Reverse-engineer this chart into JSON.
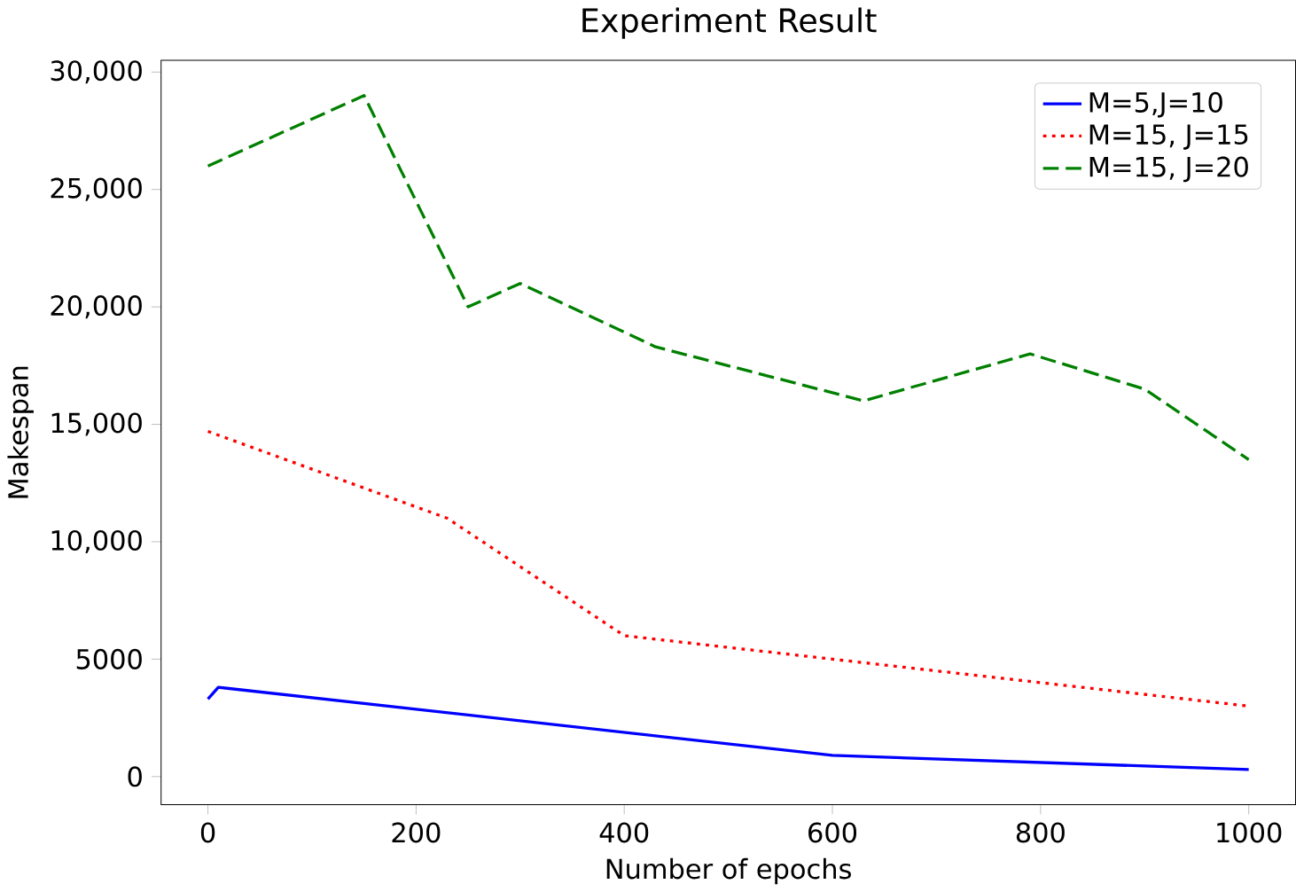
{
  "chart_data": {
    "type": "line",
    "title": "Experiment Result",
    "xlabel": "Number of epochs",
    "ylabel": "Makespan",
    "xlim": [
      -45,
      1045
    ],
    "ylim": [
      -1200,
      30500
    ],
    "xticks": [
      0,
      200,
      400,
      600,
      800,
      1000
    ],
    "yticks": [
      0,
      5000,
      {
        "value": 10000,
        "label": "10,000"
      },
      {
        "value": 15000,
        "label": "15,000"
      },
      {
        "value": 20000,
        "label": "20,000"
      },
      {
        "value": 25000,
        "label": "25,000"
      },
      {
        "value": 30000,
        "label": "30,000"
      }
    ],
    "legend": "top right",
    "grid": false,
    "series": [
      {
        "name": "M=5,J=10",
        "color": "#0000ff",
        "line_style": "solid",
        "x": [
          0,
          10,
          600,
          1000
        ],
        "values": [
          3300,
          3800,
          900,
          300
        ]
      },
      {
        "name": "M=15, J=15",
        "color": "#ff0000",
        "line_style": "dotted",
        "x": [
          0,
          230,
          400,
          600,
          1000
        ],
        "values": [
          14700,
          11000,
          6000,
          5000,
          3000
        ]
      },
      {
        "name": "M=15, J=20",
        "color": "#008000",
        "line_style": "dashed",
        "x": [
          0,
          150,
          250,
          300,
          430,
          630,
          790,
          900,
          1000
        ],
        "values": [
          26000,
          29000,
          20000,
          21000,
          18300,
          16000,
          18000,
          16500,
          13500
        ]
      }
    ]
  }
}
